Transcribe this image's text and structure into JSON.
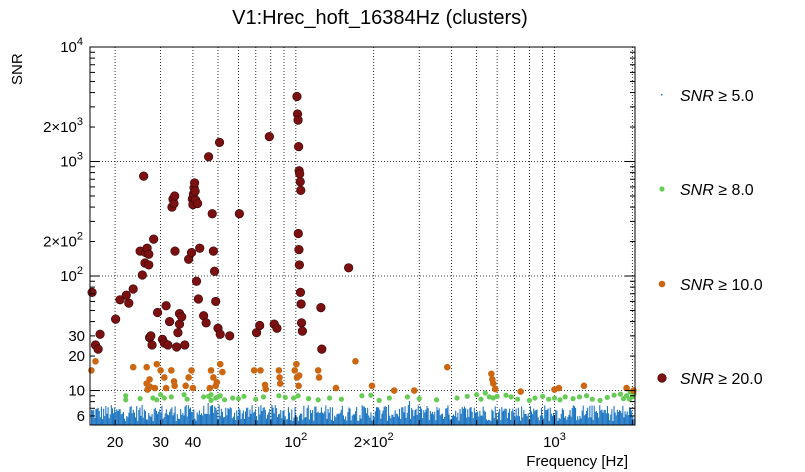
{
  "chart_data": {
    "type": "scatter",
    "title": "V1:Hrec_hoft_16384Hz (clusters)",
    "xlabel": "Frequency [Hz]",
    "ylabel": "SNR",
    "xscale": "log",
    "yscale": "log",
    "xlim": [
      16,
      2048
    ],
    "ylim": [
      5,
      10000
    ],
    "grid": true,
    "x_ticks": [
      {
        "value": 20,
        "label": "20"
      },
      {
        "value": 30,
        "label": "30"
      },
      {
        "value": 40,
        "label": "40"
      },
      {
        "value": 100,
        "label": "10",
        "sup": "2"
      },
      {
        "value": 200,
        "label": "2×10",
        "sup": "2"
      },
      {
        "value": 1000,
        "label": "10",
        "sup": "3"
      }
    ],
    "y_ticks": [
      {
        "value": 6,
        "label": "6"
      },
      {
        "value": 10,
        "label": "10"
      },
      {
        "value": 20,
        "label": "20"
      },
      {
        "value": 30,
        "label": "30"
      },
      {
        "value": 100,
        "label": "10",
        "sup": "2"
      },
      {
        "value": 200,
        "label": "2×10",
        "sup": "2"
      },
      {
        "value": 1000,
        "label": "10",
        "sup": "3"
      },
      {
        "value": 2000,
        "label": "2×10",
        "sup": "3"
      },
      {
        "value": 10000,
        "label": "10",
        "sup": "4"
      }
    ],
    "series": [
      {
        "name": "SNR ≥ 5.0",
        "symbol": "SNR",
        "threshold": "≥ 5.0",
        "color": "#1f77c4",
        "style": "noise-floor",
        "note": "dense floor of small points between SNR 5 and ~8 spanning full frequency range"
      },
      {
        "name": "SNR ≥ 8.0",
        "symbol": "SNR",
        "threshold": "≥ 8.0",
        "color": "#66cc55",
        "points": [
          [
            22,
            9
          ],
          [
            22,
            8.3
          ],
          [
            25,
            8.5
          ],
          [
            28,
            8.6
          ],
          [
            29,
            8.3
          ],
          [
            30,
            9.2
          ],
          [
            31,
            8.6
          ],
          [
            33,
            8.8
          ],
          [
            37,
            9.2
          ],
          [
            38,
            8.4
          ],
          [
            44,
            8.8
          ],
          [
            46,
            8.9
          ],
          [
            47,
            9.2
          ],
          [
            47,
            8.2
          ],
          [
            49,
            8.6
          ],
          [
            50,
            8.8
          ],
          [
            51,
            9.0
          ],
          [
            53,
            8.3
          ],
          [
            57,
            8.6
          ],
          [
            60,
            8.5
          ],
          [
            63,
            8.9
          ],
          [
            70,
            8.4
          ],
          [
            75,
            8.8
          ],
          [
            86,
            9.0
          ],
          [
            91,
            8.7
          ],
          [
            98,
            8.6
          ],
          [
            102,
            9.0
          ],
          [
            112,
            8.5
          ],
          [
            122,
            8.3
          ],
          [
            135,
            8.6
          ],
          [
            150,
            8.4
          ],
          [
            180,
            9.0
          ],
          [
            195,
            9.1
          ],
          [
            210,
            8.2
          ],
          [
            230,
            8.6
          ],
          [
            270,
            8.8
          ],
          [
            300,
            8.5
          ],
          [
            350,
            8.3
          ],
          [
            420,
            8.6
          ],
          [
            460,
            8.9
          ],
          [
            500,
            9.2
          ],
          [
            520,
            8.4
          ],
          [
            540,
            9.5
          ],
          [
            560,
            8.8
          ],
          [
            580,
            8.6
          ],
          [
            600,
            8.9
          ],
          [
            650,
            9.1
          ],
          [
            680,
            8.8
          ],
          [
            720,
            8.4
          ],
          [
            800,
            8.2
          ],
          [
            840,
            8.6
          ],
          [
            900,
            8.9
          ],
          [
            950,
            8.4
          ],
          [
            1000,
            8.6
          ],
          [
            1050,
            8.3
          ],
          [
            1100,
            8.8
          ],
          [
            1180,
            8.5
          ],
          [
            1250,
            8.8
          ],
          [
            1330,
            9.0
          ],
          [
            1400,
            8.4
          ],
          [
            1500,
            8.2
          ],
          [
            1600,
            8.7
          ],
          [
            1700,
            9.1
          ],
          [
            1800,
            9.3
          ],
          [
            1850,
            8.5
          ],
          [
            1900,
            9.0
          ],
          [
            1950,
            8.4
          ],
          [
            2000,
            8.8
          ],
          [
            2030,
            9.4
          ],
          [
            1960,
            9.7
          ]
        ]
      },
      {
        "name": "SNR ≥ 10.0",
        "symbol": "SNR",
        "threshold": "≥ 10.0",
        "color": "#cc6611",
        "points": [
          [
            16.2,
            15
          ],
          [
            16.8,
            18
          ],
          [
            23.5,
            16
          ],
          [
            26.5,
            16
          ],
          [
            26.5,
            11.5
          ],
          [
            26.7,
            10.2
          ],
          [
            27.2,
            12.5
          ],
          [
            27.3,
            10.8
          ],
          [
            28.5,
            10.5
          ],
          [
            29,
            17
          ],
          [
            30,
            15
          ],
          [
            31,
            13
          ],
          [
            31.5,
            10.5
          ],
          [
            33,
            15
          ],
          [
            33.8,
            12
          ],
          [
            34,
            11
          ],
          [
            37.5,
            11
          ],
          [
            38.5,
            13
          ],
          [
            39.5,
            15
          ],
          [
            40,
            10.5
          ],
          [
            46.5,
            10.5
          ],
          [
            47,
            15
          ],
          [
            48,
            13
          ],
          [
            49,
            11
          ],
          [
            49.5,
            11.8
          ],
          [
            51,
            17
          ],
          [
            52,
            14.5
          ],
          [
            69,
            15
          ],
          [
            73,
            15
          ],
          [
            76,
            11.2
          ],
          [
            76.5,
            10.3
          ],
          [
            86,
            15
          ],
          [
            86.5,
            13
          ],
          [
            87,
            11.5
          ],
          [
            99,
            15
          ],
          [
            100.5,
            17
          ],
          [
            101,
            13
          ],
          [
            102.5,
            11
          ],
          [
            103,
            13.5
          ],
          [
            122,
            15
          ],
          [
            123,
            13
          ],
          [
            143,
            10.5
          ],
          [
            170,
            18
          ],
          [
            197,
            11
          ],
          [
            240,
            10
          ],
          [
            287,
            10
          ],
          [
            385,
            16
          ],
          [
            570,
            14
          ],
          [
            575,
            12.5
          ],
          [
            580,
            11.5
          ],
          [
            590,
            10.3
          ],
          [
            740,
            9.8
          ],
          [
            1000,
            10.2
          ],
          [
            1040,
            10.5
          ],
          [
            1300,
            11
          ],
          [
            1900,
            10.5
          ],
          [
            2020,
            10
          ]
        ]
      },
      {
        "name": "SNR ≥ 20.0",
        "symbol": "SNR",
        "threshold": "≥ 20.0",
        "color": "#7a1010",
        "points": [
          [
            16.3,
            72
          ],
          [
            16.8,
            25
          ],
          [
            17.2,
            23
          ],
          [
            17.5,
            31
          ],
          [
            20.1,
            42
          ],
          [
            20.9,
            62
          ],
          [
            22.1,
            68
          ],
          [
            22.6,
            58
          ],
          [
            23.5,
            77
          ],
          [
            25,
            165
          ],
          [
            25.5,
            102
          ],
          [
            25.8,
            745
          ],
          [
            26.1,
            130
          ],
          [
            26.3,
            160
          ],
          [
            26.6,
            175
          ],
          [
            27,
            155
          ],
          [
            27,
            125
          ],
          [
            27.2,
            29
          ],
          [
            27.5,
            30
          ],
          [
            27.8,
            25
          ],
          [
            28.2,
            210
          ],
          [
            29.2,
            48
          ],
          [
            30.5,
            28
          ],
          [
            31,
            26
          ],
          [
            31.5,
            55
          ],
          [
            32,
            25
          ],
          [
            32.5,
            40
          ],
          [
            33.2,
            400
          ],
          [
            33.5,
            470
          ],
          [
            33.8,
            430
          ],
          [
            34,
            500
          ],
          [
            34.1,
            165
          ],
          [
            34.6,
            24
          ],
          [
            35,
            32
          ],
          [
            35.5,
            38
          ],
          [
            35.5,
            47
          ],
          [
            36.2,
            44
          ],
          [
            37.2,
            25
          ],
          [
            38.5,
            140
          ],
          [
            39.5,
            160
          ],
          [
            39.8,
            470
          ],
          [
            40,
            420
          ],
          [
            40.2,
            520
          ],
          [
            40.4,
            590
          ],
          [
            40.6,
            650
          ],
          [
            40.8,
            550
          ],
          [
            41,
            460
          ],
          [
            41.3,
            90
          ],
          [
            41.7,
            430
          ],
          [
            42,
            63
          ],
          [
            42.5,
            175
          ],
          [
            44,
            45
          ],
          [
            45,
            39
          ],
          [
            46,
            1100
          ],
          [
            47.5,
            350
          ],
          [
            48,
            165
          ],
          [
            48.5,
            110
          ],
          [
            49,
            60
          ],
          [
            50,
            35
          ],
          [
            50.7,
            1470
          ],
          [
            51,
            31
          ],
          [
            55.5,
            30
          ],
          [
            60.5,
            350
          ],
          [
            70.5,
            32
          ],
          [
            72.5,
            37
          ],
          [
            79,
            1650
          ],
          [
            82.5,
            38
          ],
          [
            84.5,
            35
          ],
          [
            101,
            3700
          ],
          [
            101.5,
            2600
          ],
          [
            102,
            2300
          ],
          [
            102.5,
            1350
          ],
          [
            103,
            830
          ],
          [
            103.5,
            780
          ],
          [
            104,
            665
          ],
          [
            104.5,
            560
          ],
          [
            102.2,
            235
          ],
          [
            102.8,
            170
          ],
          [
            103.2,
            125
          ],
          [
            104.2,
            72
          ],
          [
            104.8,
            57
          ],
          [
            105.2,
            39
          ],
          [
            106,
            33
          ],
          [
            125,
            53
          ],
          [
            126,
            23
          ],
          [
            160,
            118
          ]
        ]
      }
    ]
  }
}
